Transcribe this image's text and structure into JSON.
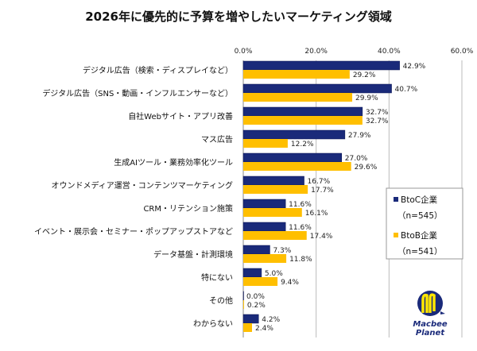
{
  "chart_data": {
    "type": "bar",
    "orientation": "horizontal",
    "title": "2026年に優先的に予算を増やしたいマーケティング領域",
    "categories": [
      "デジタル広告（検索・ディスプレイなど）",
      "デジタル広告（SNS・動画・インフルエンサーなど）",
      "自社Webサイト・アプリ改善",
      "マス広告",
      "生成AIツール・業務効率化ツール",
      "オウンドメディア運営・コンテンツマーケティング",
      "CRM・リテンション施策",
      "イベント・展示会・セミナー・ポップアップストアなど",
      "データ基盤・計測環境",
      "特にない",
      "その他",
      "わからない"
    ],
    "series": [
      {
        "name": "BtoC企業",
        "n_label": "（n=545）",
        "color": "#1a2a7a",
        "values": [
          42.9,
          40.7,
          32.7,
          27.9,
          27.0,
          16.7,
          11.6,
          11.6,
          7.3,
          5.0,
          0.0,
          4.2
        ]
      },
      {
        "name": "BtoB企業",
        "n_label": "（n=541）",
        "color": "#ffbf00",
        "values": [
          29.2,
          29.9,
          32.7,
          12.2,
          29.6,
          17.7,
          16.1,
          17.4,
          11.8,
          9.4,
          0.2,
          2.4
        ]
      }
    ],
    "xlim": [
      0,
      60
    ],
    "xticks": [
      "0.0%",
      "20.0%",
      "40.0%",
      "60.0%"
    ],
    "tick_values": [
      0,
      20,
      40,
      60
    ],
    "value_suffix": "%",
    "grid": true,
    "legend_placement": "right"
  },
  "logo": {
    "text_line1": "Macbee",
    "text_line2": "Planet",
    "color_blue": "#1a2a7a",
    "color_yellow": "#ffe600"
  }
}
